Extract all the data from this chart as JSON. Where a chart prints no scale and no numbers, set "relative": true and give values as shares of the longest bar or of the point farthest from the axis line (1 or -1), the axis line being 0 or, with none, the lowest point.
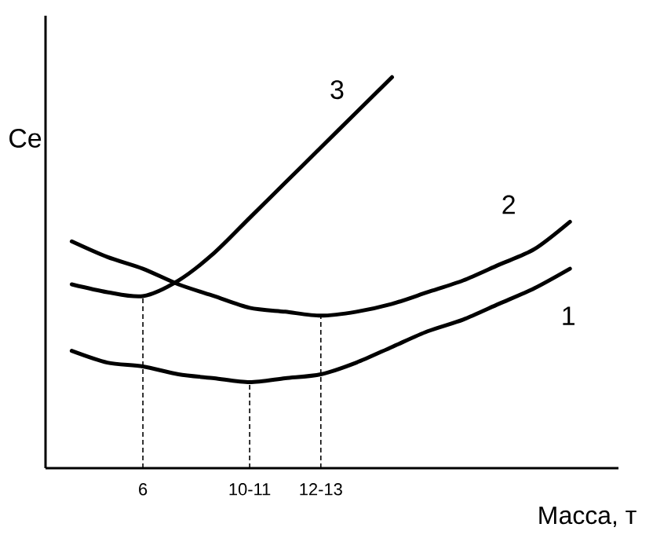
{
  "chart_data": {
    "type": "line",
    "relative": true,
    "xlabel": "Масса, т",
    "ylabel": "Се",
    "marker": "none",
    "categories": [
      null,
      null,
      "6",
      null,
      null,
      "10-11",
      null,
      "12-13",
      null,
      null,
      null,
      null,
      null,
      null,
      null
    ],
    "series": [
      {
        "name": "1",
        "color": "#000000",
        "values": [
          0.3,
          0.27,
          0.26,
          0.24,
          0.23,
          0.22,
          0.23,
          0.24,
          0.27,
          0.31,
          0.35,
          0.38,
          0.42,
          0.46,
          0.51
        ]
      },
      {
        "name": "2",
        "color": "#000000",
        "values": [
          0.58,
          0.54,
          0.51,
          0.47,
          0.44,
          0.41,
          0.4,
          0.39,
          0.4,
          0.42,
          0.45,
          0.48,
          0.52,
          0.56,
          0.63
        ]
      },
      {
        "name": "3",
        "color": "#000000",
        "values": [
          0.47,
          0.45,
          0.44,
          0.48,
          0.55,
          0.64,
          0.73,
          0.82,
          0.91,
          1.0,
          null,
          null,
          null,
          null,
          null
        ]
      }
    ],
    "ref_lines": [
      {
        "axis": "x",
        "value": "6",
        "color": "#000000",
        "line_style": "dashed"
      },
      {
        "axis": "x",
        "value": "10-11",
        "color": "#000000",
        "line_style": "dashed"
      },
      {
        "axis": "x",
        "value": "12-13",
        "color": "#000000",
        "line_style": "dashed"
      }
    ]
  }
}
